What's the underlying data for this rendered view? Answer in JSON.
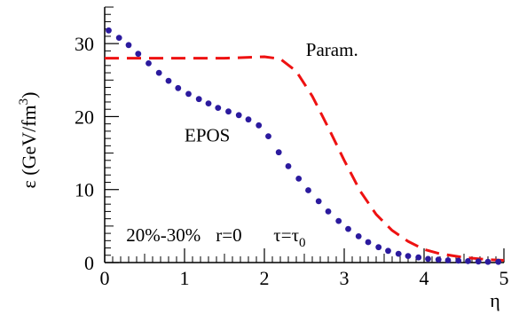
{
  "chart_data": {
    "type": "line",
    "xlabel": "η",
    "ylabel": {
      "main": "ε (GeV/fm",
      "superscript": "3",
      "close": ")"
    },
    "xlim": [
      0,
      5
    ],
    "ylim": [
      0,
      35
    ],
    "x_ticks": [
      0,
      1,
      2,
      3,
      4,
      5
    ],
    "y_ticks": [
      0,
      10,
      20,
      30
    ],
    "grid": false,
    "series": [
      {
        "name": "Param.",
        "style": "dashed",
        "color": "#ee1111",
        "x": [
          0,
          0.5,
          1.0,
          1.5,
          2.0,
          2.2,
          2.4,
          2.6,
          2.8,
          3.0,
          3.2,
          3.4,
          3.6,
          3.8,
          4.0,
          4.2,
          4.5,
          4.8,
          5.0
        ],
        "y": [
          28,
          28,
          28,
          28,
          28.2,
          27.9,
          26.2,
          22.8,
          18.5,
          14.0,
          9.8,
          6.6,
          4.4,
          2.9,
          1.8,
          1.2,
          0.7,
          0.4,
          0.3
        ]
      },
      {
        "name": "EPOS",
        "style": "dotted",
        "color": "#2b1a9e",
        "x": [
          0.05,
          0.18,
          0.3,
          0.42,
          0.55,
          0.68,
          0.8,
          0.92,
          1.05,
          1.18,
          1.3,
          1.42,
          1.55,
          1.68,
          1.8,
          1.93,
          2.05,
          2.18,
          2.3,
          2.43,
          2.55,
          2.68,
          2.8,
          2.93,
          3.05,
          3.18,
          3.3,
          3.43,
          3.55,
          3.68,
          3.8,
          3.93,
          4.05,
          4.18,
          4.3,
          4.43,
          4.55,
          4.68,
          4.8,
          4.93
        ],
        "y": [
          31.8,
          30.8,
          29.8,
          28.6,
          27.3,
          26.0,
          24.9,
          23.9,
          23.1,
          22.4,
          21.8,
          21.2,
          20.7,
          20.2,
          19.6,
          18.8,
          17.3,
          15.1,
          13.2,
          11.5,
          9.9,
          8.4,
          7.0,
          5.7,
          4.6,
          3.6,
          2.8,
          2.1,
          1.6,
          1.2,
          0.9,
          0.7,
          0.5,
          0.4,
          0.3,
          0.25,
          0.2,
          0.15,
          0.1,
          0.1
        ]
      }
    ],
    "labels": {
      "param": "Param.",
      "epos": "EPOS",
      "centrality": "20%-30%",
      "r": "r=0",
      "tau_left": "τ=τ",
      "tau_sub": "0"
    },
    "annotations": [
      {
        "text_key": "param",
        "x": 2.52,
        "y": 28.3
      },
      {
        "text_key": "epos",
        "x": 1.0,
        "y": 16.6
      }
    ],
    "bottom_note": {
      "x": 0.27,
      "y": 2.9
    }
  }
}
